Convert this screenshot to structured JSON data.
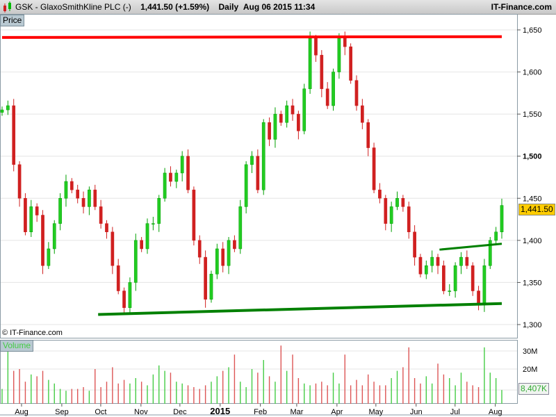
{
  "header": {
    "icon": "candlestick-icon",
    "title": "GSK - GlaxoSmithKline PLC (-)",
    "price": "1,441.50 (+1.59%)",
    "interval": "Daily",
    "datetime": "Aug 06 2015 11:34",
    "brand": "IT-Finance.com"
  },
  "price_panel": {
    "label": "Price",
    "copyright": "© IT-Finance.com",
    "last_price_badge": "1,441.50"
  },
  "volume_panel": {
    "label": "Volume",
    "last_volume_badge": "8,407K"
  },
  "colors": {
    "up": "#00a000",
    "down": "#d02020",
    "resistance": "#ff0000",
    "support": "#008000",
    "badge": "#ffcc00"
  },
  "chart_data": {
    "type": "candlestick",
    "start_date": "2014-07-17",
    "end_date": "2015-08-06",
    "price_ylim": [
      1290,
      1665
    ],
    "price_ticks": [
      {
        "v": 1300,
        "l": "1,300"
      },
      {
        "v": 1350,
        "l": "1,350"
      },
      {
        "v": 1400,
        "l": "1,400"
      },
      {
        "v": 1450,
        "l": "1,450"
      },
      {
        "v": 1500,
        "l": "1,500"
      },
      {
        "v": 1550,
        "l": "1,550"
      },
      {
        "v": 1600,
        "l": "1,600"
      },
      {
        "v": 1650,
        "l": "1,650"
      }
    ],
    "volume_ticks": [
      {
        "v": 20,
        "l": "20M"
      },
      {
        "v": 30,
        "l": "30M"
      }
    ],
    "volume_ylim": [
      0,
      34
    ],
    "x_ticks": [
      {
        "d": "2014-08-01",
        "l": "Aug"
      },
      {
        "d": "2014-09-01",
        "l": "Sep"
      },
      {
        "d": "2014-10-01",
        "l": "Oct"
      },
      {
        "d": "2014-11-01",
        "l": "Nov"
      },
      {
        "d": "2014-12-01",
        "l": "Dec"
      },
      {
        "d": "2015-01-01",
        "l": "2015"
      },
      {
        "d": "2015-02-01",
        "l": "Feb"
      },
      {
        "d": "2015-03-01",
        "l": "Mar"
      },
      {
        "d": "2015-04-01",
        "l": "Apr"
      },
      {
        "d": "2015-05-01",
        "l": "May"
      },
      {
        "d": "2015-06-01",
        "l": "Jun"
      },
      {
        "d": "2015-07-01",
        "l": "Jul"
      },
      {
        "d": "2015-08-01",
        "l": "Aug"
      }
    ],
    "closes": [
      1555,
      1560,
      1490,
      1450,
      1410,
      1440,
      1430,
      1370,
      1390,
      1420,
      1450,
      1470,
      1460,
      1450,
      1440,
      1460,
      1440,
      1420,
      1410,
      1370,
      1340,
      1320,
      1350,
      1400,
      1390,
      1420,
      1420,
      1450,
      1480,
      1470,
      1480,
      1500,
      1460,
      1400,
      1380,
      1330,
      1360,
      1390,
      1370,
      1400,
      1390,
      1440,
      1490,
      1500,
      1460,
      1540,
      1520,
      1550,
      1540,
      1560,
      1550,
      1530,
      1580,
      1640,
      1620,
      1580,
      1560,
      1600,
      1640,
      1630,
      1590,
      1560,
      1540,
      1510,
      1460,
      1450,
      1420,
      1440,
      1450,
      1440,
      1410,
      1380,
      1360,
      1370,
      1380,
      1370,
      1340,
      1340,
      1370,
      1380,
      1370,
      1340,
      1325,
      1370,
      1400,
      1410,
      1441.5
    ],
    "volumes": [
      9,
      31,
      19,
      20,
      13,
      17,
      16,
      19,
      14,
      12,
      9,
      8,
      9,
      9,
      10,
      8,
      20,
      10,
      13,
      21,
      12,
      14,
      12,
      15,
      13,
      11,
      17,
      22,
      19,
      18,
      13,
      12,
      11,
      10,
      9,
      11,
      13,
      16,
      19,
      21,
      28,
      13,
      10,
      20,
      18,
      25,
      16,
      13,
      33,
      19,
      28,
      15,
      12,
      11,
      12,
      13,
      11,
      18,
      12,
      28,
      11,
      14,
      11,
      17,
      13,
      11,
      11,
      15,
      19,
      21,
      32,
      15,
      12,
      16,
      12,
      23,
      17,
      15,
      11,
      18,
      13,
      11,
      10,
      32,
      18,
      15,
      8.4
    ],
    "trend_lines": [
      {
        "name": "resistance",
        "color": "#ff0000",
        "from": {
          "d": "2014-07-17",
          "p": 1641
        },
        "to": {
          "d": "2015-08-06",
          "p": 1642
        }
      },
      {
        "name": "support",
        "color": "#008000",
        "from": {
          "d": "2014-09-29",
          "p": 1312
        },
        "to": {
          "d": "2015-08-06",
          "p": 1325
        }
      },
      {
        "name": "breakout",
        "color": "#008000",
        "from": {
          "d": "2015-06-19",
          "p": 1389
        },
        "to": {
          "d": "2015-08-06",
          "p": 1396
        }
      }
    ]
  }
}
